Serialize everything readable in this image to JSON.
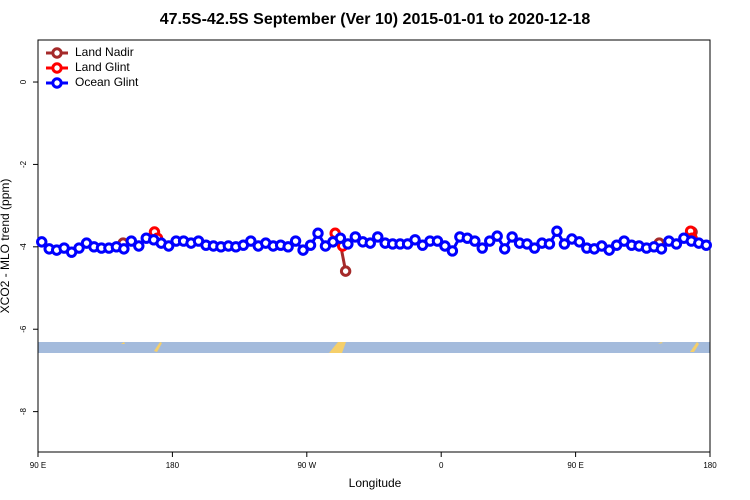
{
  "chart_data": {
    "type": "line",
    "title": "47.5S-42.5S September (Ver 10)   2015-01-01 to 2020-12-18",
    "x_label": "Longitude",
    "y_label": "XCO2 - MLO trend (ppm)",
    "xlim": [
      90,
      540
    ],
    "ylim": [
      -8.98,
      1.02
    ],
    "xticks": [
      {
        "value": 90,
        "label": "90 E"
      },
      180,
      {
        "value": 270,
        "label": "90 W"
      },
      {
        "value": 360,
        "label": "0"
      },
      {
        "value": 450,
        "label": "90 E"
      },
      {
        "value": 540,
        "label": "180"
      }
    ],
    "yticks": [
      0,
      -2,
      -4,
      -6,
      -8
    ],
    "legend": "topleft",
    "series": [
      {
        "name": "Land Nadir",
        "color": "#a52a2a",
        "x": [
          147,
          220,
          292,
          296,
          400,
          506,
          517,
          528
        ],
        "values": [
          -3.91,
          null,
          -3.84,
          -4.59,
          null,
          -3.91,
          null,
          -3.64
        ]
      },
      {
        "name": "Land Glint",
        "color": "#ff0000",
        "x": [
          168,
          170,
          230,
          289,
          294,
          400,
          527,
          528
        ],
        "values": [
          -3.64,
          -3.79,
          null,
          -3.67,
          -3.98,
          null,
          -3.62,
          -3.79
        ]
      },
      {
        "name": "Ocean Glint",
        "color": "#0000ff",
        "x": [
          92.5,
          97.5,
          102.5,
          107.5,
          112.5,
          117.5,
          122.5,
          127.5,
          132.5,
          137.5,
          142.5,
          147.5,
          152.5,
          157.5,
          162.5,
          167.5,
          172.5,
          177.5,
          182.5,
          187.5,
          192.5,
          197.5,
          202.5,
          207.5,
          212.5,
          217.5,
          222.5,
          227.5,
          232.5,
          237.5,
          242.5,
          247.5,
          252.5,
          257.5,
          262.5,
          267.5,
          272.5,
          277.5,
          282.5,
          287.5,
          292.5,
          297.5,
          302.5,
          307.5,
          312.5,
          317.5,
          322.5,
          327.5,
          332.5,
          337.5,
          342.5,
          347.5,
          352.5,
          357.5,
          362.5,
          367.5,
          372.5,
          377.5,
          382.5,
          387.5,
          392.5,
          397.5,
          402.5,
          407.5,
          412.5,
          417.5,
          422.5,
          427.5,
          432.5,
          437.5,
          442.5,
          447.5,
          452.5,
          457.5,
          462.5,
          467.5,
          472.5,
          477.5,
          482.5,
          487.5,
          492.5,
          497.5,
          502.5,
          507.5,
          512.5,
          517.5,
          522.5,
          527.5,
          532.5,
          537.5
        ],
        "values": [
          -3.88,
          -4.05,
          -4.08,
          -4.03,
          -4.13,
          -4.03,
          -3.91,
          -4.0,
          -4.03,
          -4.03,
          -4.0,
          -4.05,
          -3.86,
          -3.98,
          -3.79,
          -3.83,
          -3.91,
          -3.98,
          -3.86,
          -3.86,
          -3.91,
          -3.86,
          -3.96,
          -3.98,
          -4.0,
          -3.98,
          -4.0,
          -3.96,
          -3.86,
          -3.98,
          -3.91,
          -3.98,
          -3.96,
          -4.0,
          -3.86,
          -4.08,
          -3.96,
          -3.67,
          -3.98,
          -3.88,
          -3.79,
          -3.93,
          -3.76,
          -3.88,
          -3.91,
          -3.76,
          -3.91,
          -3.93,
          -3.93,
          -3.93,
          -3.83,
          -3.96,
          -3.86,
          -3.86,
          -3.98,
          -4.1,
          -3.76,
          -3.79,
          -3.86,
          -4.03,
          -3.86,
          -3.74,
          -4.05,
          -3.76,
          -3.91,
          -3.93,
          -4.03,
          -3.91,
          -3.93,
          -3.62,
          -3.93,
          -3.81,
          -3.88,
          -4.03,
          -4.05,
          -3.98,
          -4.08,
          -3.96,
          -3.86,
          -3.96,
          -3.98,
          -4.03,
          -4.0,
          -4.05,
          -3.86,
          -3.93,
          -3.79,
          -3.86,
          -3.91,
          -3.96
        ]
      }
    ]
  }
}
